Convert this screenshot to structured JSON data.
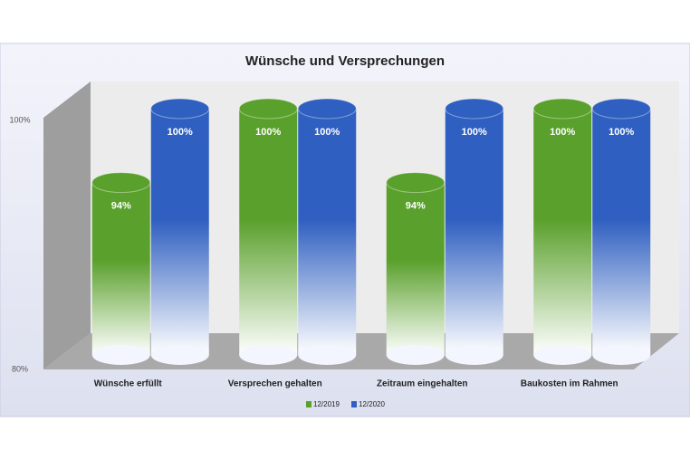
{
  "chart_data": {
    "type": "bar",
    "title": "Wünsche und Versprechungen",
    "categories": [
      "Wünsche erfüllt",
      "Versprechen gehalten",
      "Zeitraum eingehalten",
      "Baukosten im Rahmen"
    ],
    "series": [
      {
        "name": "12/2019",
        "color": "#5aa02c",
        "values": [
          94,
          100,
          94,
          100
        ],
        "value_labels": [
          "94%",
          "100%",
          "94%",
          "100%"
        ]
      },
      {
        "name": "12/2020",
        "color": "#2f5fc0",
        "values": [
          100,
          100,
          100,
          100
        ],
        "value_labels": [
          "100%",
          "100%",
          "100%",
          "100%"
        ]
      }
    ],
    "ylim": [
      80,
      100
    ],
    "yticks": [
      {
        "value": 80,
        "label": "80%"
      },
      {
        "value": 100,
        "label": "100%"
      }
    ]
  }
}
